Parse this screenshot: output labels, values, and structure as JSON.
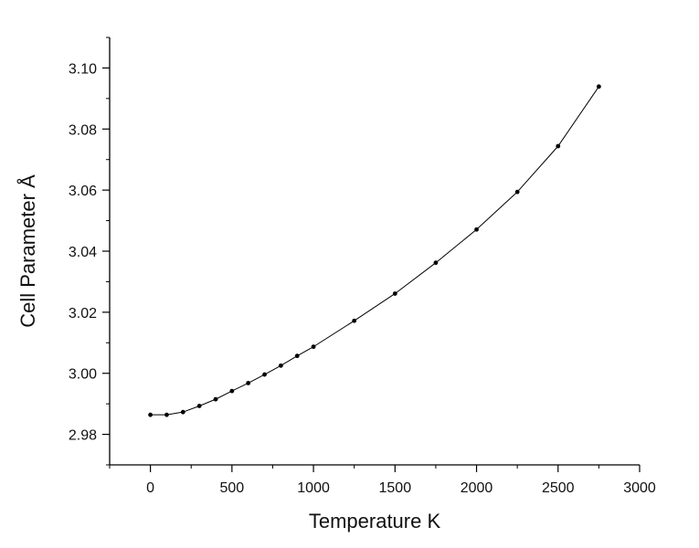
{
  "chart_data": {
    "type": "line",
    "title": "",
    "xlabel": "Temperature K",
    "ylabel": "Cell Parameter Å",
    "xlim": [
      -250,
      3000
    ],
    "ylim": [
      2.97,
      3.11
    ],
    "xticks": [
      0,
      500,
      1000,
      1500,
      2000,
      2500,
      3000
    ],
    "xtick_labels": [
      "0",
      "500",
      "1000",
      "1500",
      "2000",
      "2500",
      "3000"
    ],
    "yticks": [
      2.98,
      3.0,
      3.02,
      3.04,
      3.06,
      3.08,
      3.1
    ],
    "ytick_labels": [
      "2.98",
      "3.00",
      "3.02",
      "3.04",
      "3.06",
      "3.08",
      "3.10"
    ],
    "grid": false,
    "legend": "none",
    "series": [
      {
        "color": "#000000",
        "marker": "dot",
        "x": [
          0,
          100,
          200,
          300,
          400,
          500,
          600,
          700,
          800,
          900,
          1000,
          1250,
          1500,
          1750,
          2000,
          2250,
          2500,
          2750
        ],
        "y": [
          2.9864,
          2.9864,
          2.9873,
          2.9893,
          2.9915,
          2.9942,
          2.9968,
          2.9996,
          3.0025,
          3.0057,
          3.0087,
          3.0172,
          3.0261,
          3.0362,
          3.0471,
          3.0594,
          3.0744,
          3.0939
        ]
      }
    ]
  }
}
